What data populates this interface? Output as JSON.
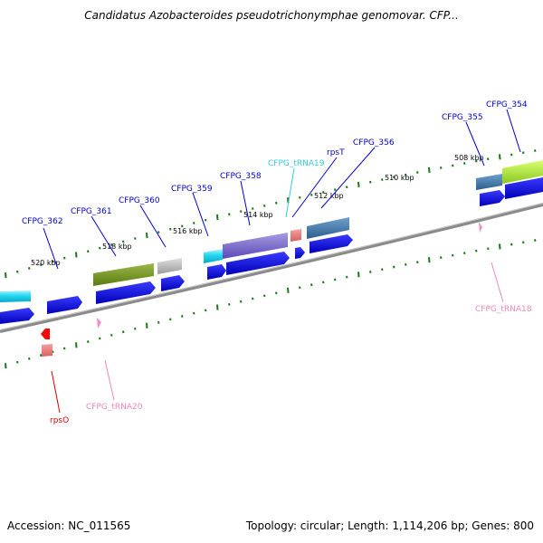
{
  "title": "Candidatus Azobacteroides pseudotrichonymphae genomovar. CFP...",
  "footer": {
    "accession": "Accession: NC_011565",
    "summary": "Topology: circular; Length: 1,114,206 bp; Genes: 800"
  },
  "scale_labels": [
    "508 kbp",
    "510 kbp",
    "512 kbp",
    "514 kbp",
    "516 kbp",
    "518 kbp",
    "520 kbp"
  ],
  "gene_labels": [
    {
      "text": "CFPG_354",
      "color": "#0000cc"
    },
    {
      "text": "CFPG_355",
      "color": "#0000cc"
    },
    {
      "text": "CFPG_356",
      "color": "#0000cc"
    },
    {
      "text": "rpsT",
      "color": "#0000cc"
    },
    {
      "text": "CFPG_tRNA19",
      "color": "#33ccdd"
    },
    {
      "text": "CFPG_358",
      "color": "#0000cc"
    },
    {
      "text": "CFPG_359",
      "color": "#0000cc"
    },
    {
      "text": "CFPG_360",
      "color": "#0000cc"
    },
    {
      "text": "CFPG_361",
      "color": "#0000cc"
    },
    {
      "text": "CFPG_362",
      "color": "#0000cc"
    },
    {
      "text": "CFPG_tRNA18",
      "color": "#ee88bb"
    },
    {
      "text": "CFPG_tRNA20",
      "color": "#ee88bb"
    },
    {
      "text": "rpsO",
      "color": "#dd0000"
    }
  ]
}
